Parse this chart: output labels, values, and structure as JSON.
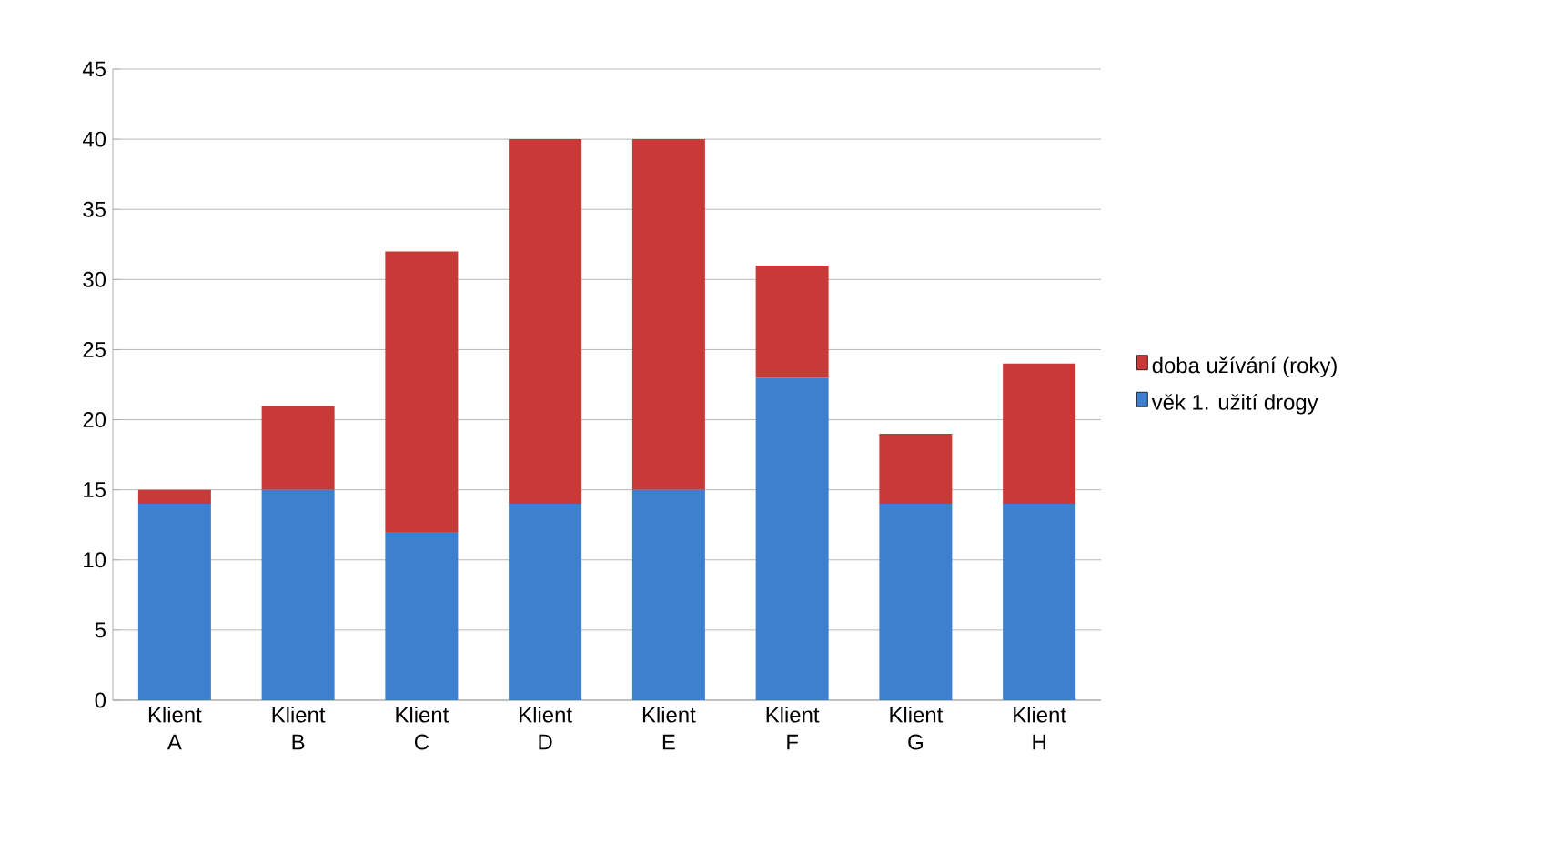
{
  "chart_data": {
    "type": "bar",
    "stacked": true,
    "categories": [
      "Klient A",
      "Klient B",
      "Klient C",
      "Klient D",
      "Klient E",
      "Klient F",
      "Klient G",
      "Klient H"
    ],
    "series": [
      {
        "name": "věk 1. užití drogy",
        "color": "#3f7fcf",
        "values": [
          14,
          15,
          12,
          14,
          15,
          23,
          14,
          14
        ]
      },
      {
        "name": "doba užívání (roky)",
        "color": "#c83a38",
        "values": [
          1,
          6,
          20,
          26,
          25,
          8,
          5,
          10
        ]
      }
    ],
    "ylim": [
      0,
      45
    ],
    "yticks": [
      0,
      5,
      10,
      15,
      20,
      25,
      30,
      35,
      40,
      45
    ],
    "grid": "y",
    "legend": "right"
  }
}
